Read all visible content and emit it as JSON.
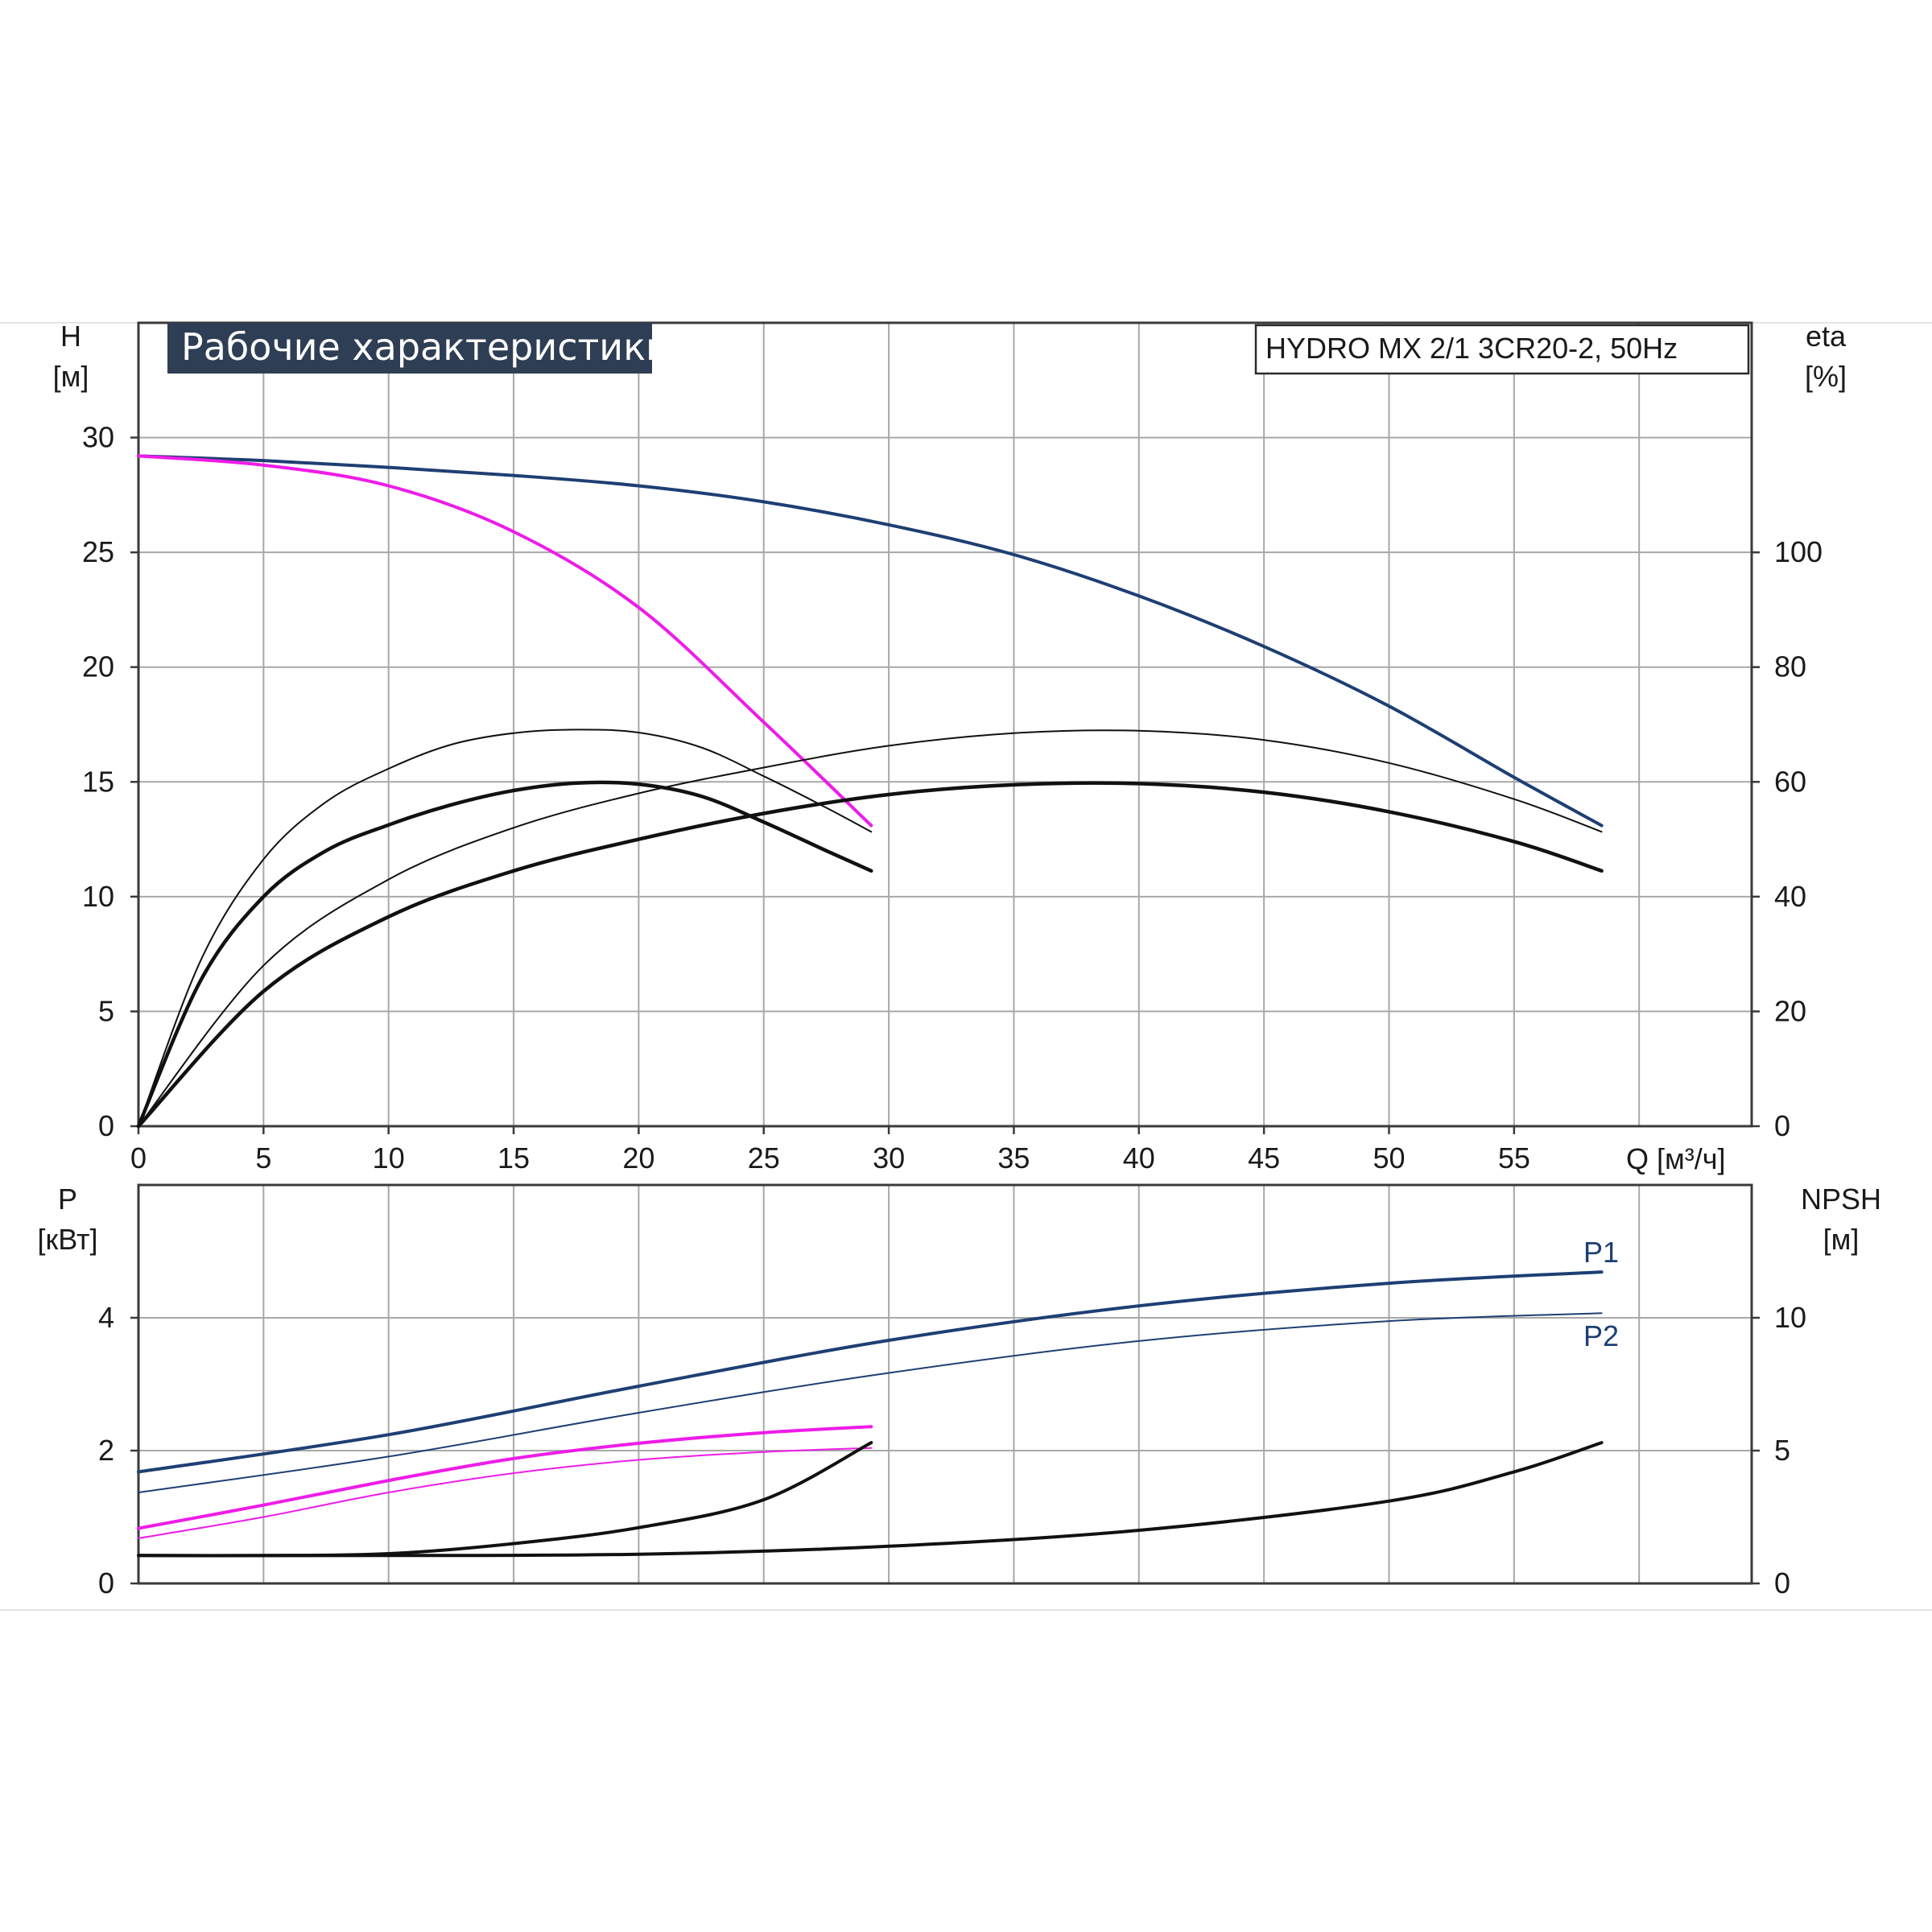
{
  "title": "Рабочие характеристики",
  "model": "HYDRO MX 2/1 3CR20-2, 50Hz",
  "colors": {
    "head_max": "#1e3f73",
    "head_one": "#ee1ce8",
    "efficiency": "#111111",
    "power": "#1e3f73",
    "npsh": "#111111"
  },
  "chart_data": [
    {
      "type": "line",
      "xlabel": "Q [м³/ч]",
      "ylabel_line1": "H",
      "ylabel_line2": "[м]",
      "y2label_line1": "eta",
      "y2label_line2": "[%]",
      "grid": true,
      "xlim": [
        0,
        64.5
      ],
      "ylim": [
        0,
        35
      ],
      "y2lim": [
        0,
        140
      ],
      "xticks": [
        0,
        5,
        10,
        15,
        20,
        25,
        30,
        35,
        40,
        45,
        50,
        55
      ],
      "yticks": [
        0,
        5,
        10,
        15,
        20,
        25,
        30
      ],
      "y2ticks": [
        0,
        20,
        40,
        60,
        80,
        100
      ],
      "series": [
        {
          "key": "head_max",
          "axis": "y",
          "color": "#1e3f73",
          "width": 4,
          "x": [
            0,
            5,
            10,
            15,
            20,
            25,
            30,
            35,
            40,
            45,
            50,
            55,
            58.5
          ],
          "y": [
            29.2,
            29.0,
            28.7,
            28.35,
            27.9,
            27.2,
            26.2,
            24.9,
            23.1,
            20.9,
            18.3,
            15.2,
            13.1
          ]
        },
        {
          "key": "head_one",
          "axis": "y",
          "color": "#ee1ce8",
          "width": 4,
          "x": [
            0,
            5,
            10,
            15,
            20,
            25,
            29.3
          ],
          "y": [
            29.2,
            28.8,
            27.9,
            25.9,
            22.6,
            17.6,
            13.1
          ]
        },
        {
          "key": "eta_max_thick",
          "axis": "y2",
          "color": "#111111",
          "width": 4.5,
          "x": [
            0,
            5,
            10,
            15,
            20,
            25,
            30,
            35,
            40,
            45,
            50,
            55,
            58.5
          ],
          "y": [
            0,
            23.5,
            36.5,
            44.5,
            50,
            54.5,
            57.8,
            59.5,
            59.7,
            58.2,
            54.8,
            49.6,
            44.5
          ]
        },
        {
          "key": "eta_max_thin",
          "axis": "y2",
          "color": "#111111",
          "width": 2,
          "x": [
            0,
            5,
            10,
            15,
            20,
            25,
            30,
            35,
            40,
            45,
            50,
            55,
            58.5
          ],
          "y": [
            0,
            28,
            43,
            52,
            58,
            62.5,
            66.3,
            68.5,
            68.9,
            67.3,
            63.3,
            57,
            51.3
          ]
        },
        {
          "key": "eta_one_thick",
          "axis": "y2",
          "color": "#111111",
          "width": 4.5,
          "x": [
            0,
            2.5,
            5,
            7.5,
            10,
            12.5,
            15,
            17.5,
            20,
            22.5,
            25,
            27.5,
            29.3
          ],
          "y": [
            0,
            25.5,
            40,
            48,
            52.5,
            56,
            58.5,
            59.8,
            59.6,
            57.5,
            53,
            48,
            44.5
          ]
        },
        {
          "key": "eta_one_thin",
          "axis": "y2",
          "color": "#111111",
          "width": 2,
          "x": [
            0,
            2.5,
            5,
            7.5,
            10,
            12.5,
            15,
            17.5,
            20,
            22.5,
            25,
            27.5,
            29.3
          ],
          "y": [
            0,
            29,
            46.5,
            56.5,
            62.3,
            66.5,
            68.5,
            69.1,
            68.6,
            66,
            61,
            55.5,
            51.3
          ]
        }
      ]
    },
    {
      "type": "line",
      "xlim": [
        0,
        64.5
      ],
      "ylabel_line1": "P",
      "ylabel_line2": "[кВт]",
      "y2label_line1": "NPSH",
      "y2label_line2": "[м]",
      "grid": true,
      "ylim": [
        0,
        6
      ],
      "y2lim": [
        0,
        15
      ],
      "yticks": [
        0,
        2,
        4
      ],
      "y2ticks": [
        0,
        5,
        10
      ],
      "series_labels": {
        "P1": "P1",
        "P2": "P2"
      },
      "series": [
        {
          "key": "P1_max",
          "axis": "y",
          "color": "#1e3f73",
          "width": 4,
          "label": "P1",
          "x": [
            0,
            10,
            20,
            30,
            40,
            50,
            58.5
          ],
          "y": [
            1.68,
            2.24,
            2.97,
            3.66,
            4.18,
            4.52,
            4.69
          ]
        },
        {
          "key": "P2_max",
          "axis": "y",
          "color": "#1e3f73",
          "width": 2,
          "label": "P2",
          "x": [
            0,
            10,
            20,
            30,
            40,
            50,
            58.5
          ],
          "y": [
            1.37,
            1.91,
            2.57,
            3.17,
            3.65,
            3.95,
            4.07
          ]
        },
        {
          "key": "P1_one",
          "axis": "y",
          "color": "#ee1ce8",
          "width": 4,
          "x": [
            0,
            5,
            10,
            15,
            20,
            25,
            29.3
          ],
          "y": [
            0.83,
            1.18,
            1.55,
            1.88,
            2.11,
            2.27,
            2.36
          ]
        },
        {
          "key": "P2_one",
          "axis": "y",
          "color": "#ee1ce8",
          "width": 2,
          "x": [
            0,
            5,
            10,
            15,
            20,
            25,
            29.3
          ],
          "y": [
            0.68,
            1.0,
            1.37,
            1.66,
            1.86,
            1.98,
            2.04
          ]
        },
        {
          "key": "npsh_one",
          "axis": "y2",
          "color": "#111111",
          "width": 4,
          "x": [
            0,
            5,
            10,
            15,
            20,
            25,
            29.3
          ],
          "y": [
            1.05,
            1.05,
            1.12,
            1.5,
            2.1,
            3.15,
            5.3
          ]
        },
        {
          "key": "npsh_max",
          "axis": "y2",
          "color": "#111111",
          "width": 4,
          "x": [
            0,
            10,
            20,
            30,
            40,
            50,
            55,
            58.5
          ],
          "y": [
            1.05,
            1.05,
            1.1,
            1.4,
            2.0,
            3.1,
            4.2,
            5.3
          ]
        }
      ]
    }
  ]
}
